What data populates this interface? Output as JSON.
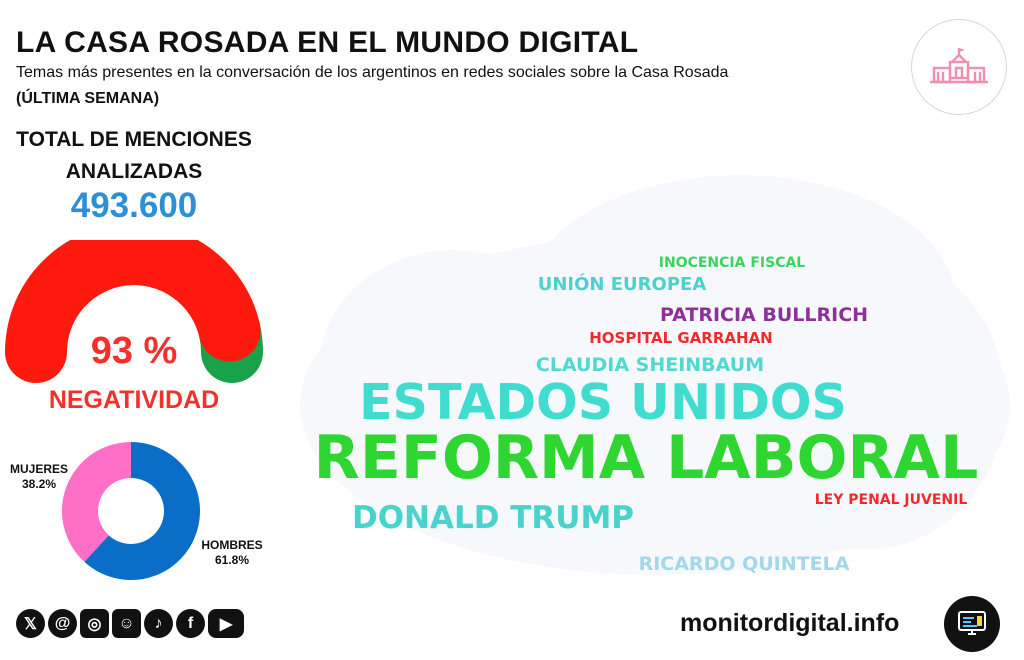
{
  "header": {
    "title": "LA CASA ROSADA EN EL MUNDO DIGITAL",
    "subtitle": "Temas más presentes en la conversación de los argentinos en redes sociales sobre la Casa Rosada",
    "period": "(ÚLTIMA SEMANA)"
  },
  "summary": {
    "total_label": "TOTAL DE MENCIONES ANALIZADAS",
    "total_value": "493.600"
  },
  "sentiment": {
    "percent_text": "93 %",
    "label": "NEGATIVIDAD",
    "negative_share": 93,
    "colors": {
      "negative": "#ff1a0f",
      "positive": "#19a24a"
    }
  },
  "gender": {
    "women_label": "MUJERES",
    "women_pct": "38.2%",
    "men_label": "HOMBRES",
    "men_pct": "61.8%"
  },
  "chart_data": [
    {
      "type": "pie",
      "labels": [
        "MUJERES",
        "HOMBRES"
      ],
      "values": [
        38.2,
        61.8
      ],
      "colors": [
        "#ff6ec7",
        "#0a6ec8"
      ]
    },
    {
      "type": "wordcloud",
      "words": [
        {
          "text": "INOCENCIA FISCAL",
          "color": "#3bd45a"
        },
        {
          "text": "UNIÓN EUROPEA",
          "color": "#49d3cc"
        },
        {
          "text": "PATRICIA BULLRICH",
          "color": "#8e2f9a"
        },
        {
          "text": "HOSPITAL GARRAHAN",
          "color": "#ee2b2b"
        },
        {
          "text": "CLAUDIA SHEINBAUM",
          "color": "#52d8d0"
        },
        {
          "text": "ESTADOS UNIDOS",
          "color": "#3fdccf"
        },
        {
          "text": "REFORMA LABORAL",
          "color": "#2fd632"
        },
        {
          "text": "LEY PENAL JUVENIL",
          "color": "#ee2b2b"
        },
        {
          "text": "DONALD TRUMP",
          "color": "#49d3cc"
        },
        {
          "text": "RICARDO QUINTELA",
          "color": "#a3d7ea"
        }
      ]
    }
  ],
  "footer": {
    "socials": [
      "x-icon",
      "threads-icon",
      "instagram-icon",
      "meme-icon",
      "tiktok-icon",
      "facebook-icon",
      "youtube-icon"
    ],
    "site": "monitordigital.info"
  }
}
